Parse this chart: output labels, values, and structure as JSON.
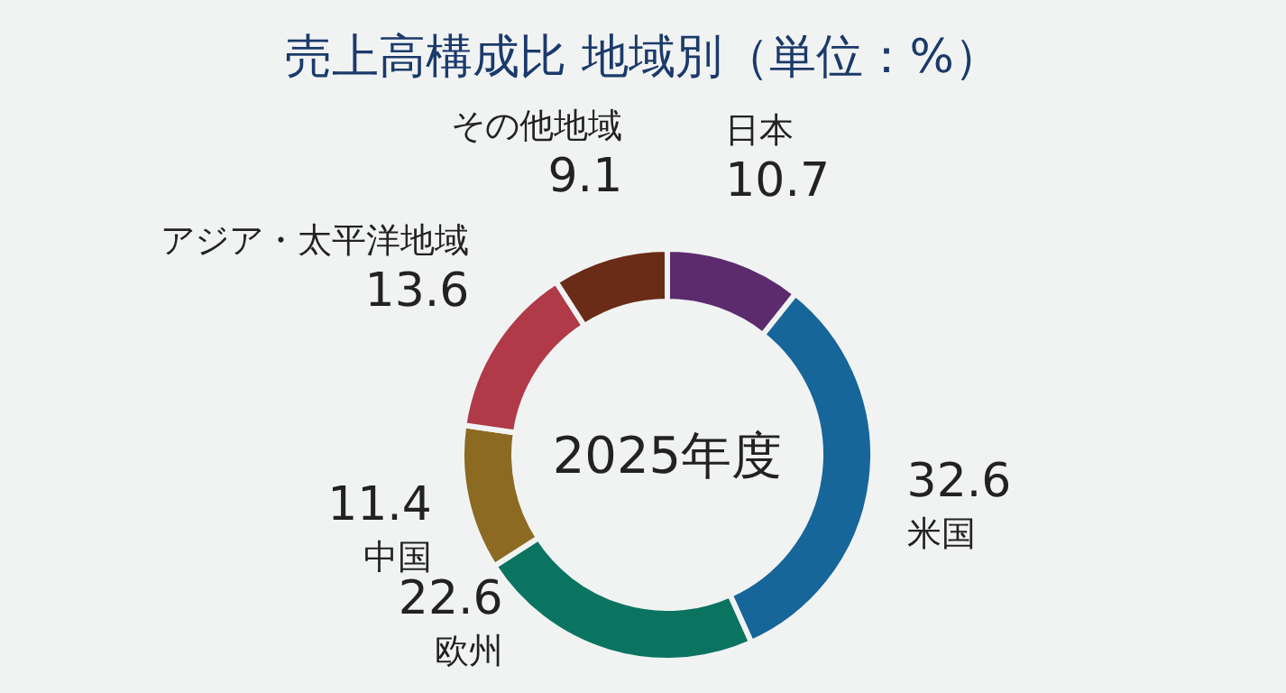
{
  "chart_data": {
    "type": "donut",
    "title": "売上高構成比 地域別（単位：%）",
    "categories": [
      "日本",
      "米国",
      "欧州",
      "中国",
      "アジア・太平洋地域",
      "その他地域"
    ],
    "values": [
      10.7,
      32.6,
      22.6,
      11.4,
      13.6,
      9.1
    ],
    "colors": [
      "#5c2b6e",
      "#17669a",
      "#0b7461",
      "#8c6a22",
      "#b03a48",
      "#6a2b17"
    ],
    "data_labels": true,
    "annotations": [
      "2025年度"
    ]
  }
}
